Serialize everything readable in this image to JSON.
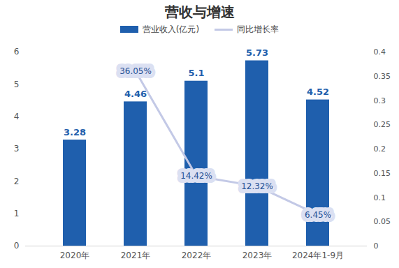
{
  "chart_data": {
    "type": "bar",
    "title": "营收与增速",
    "categories": [
      "2020年",
      "2021年",
      "2022年",
      "2023年",
      "2024年1-9月"
    ],
    "series": [
      {
        "name": "营业收入(亿元)",
        "type": "bar",
        "color": "#1f5fad",
        "values": [
          3.28,
          4.46,
          5.1,
          5.73,
          4.52
        ]
      },
      {
        "name": "同比增长率",
        "type": "line",
        "axis": "y2",
        "color": "#c3c9e6",
        "values": [
          null,
          0.3605,
          0.1442,
          0.1232,
          0.0645
        ],
        "value_labels": [
          null,
          "36.05%",
          "14.42%",
          "12.32%",
          "6.45%"
        ]
      }
    ],
    "ylim": [
      0,
      6
    ],
    "yticks": [
      0,
      1,
      2,
      3,
      4,
      5,
      6
    ],
    "y2lim": [
      0,
      0.4
    ],
    "y2ticks": [
      0,
      0.05,
      0.1,
      0.15,
      0.2,
      0.25,
      0.3,
      0.35,
      0.4
    ],
    "data_labels": true,
    "grid": false,
    "legend": "top"
  }
}
